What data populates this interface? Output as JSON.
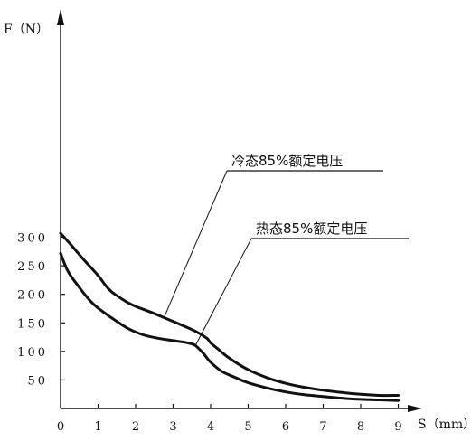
{
  "chart_data": {
    "type": "line",
    "xlabel": "S（mm）",
    "ylabel": "F（N）",
    "xlim": [
      0,
      9
    ],
    "ylim": [
      0,
      300
    ],
    "x_ticks": [
      0,
      1,
      2,
      3,
      4,
      5,
      6,
      7,
      8,
      9
    ],
    "y_ticks": [
      50,
      100,
      150,
      200,
      250,
      300
    ],
    "grid": false,
    "series": [
      {
        "name": "冷态85%额定电压",
        "x": [
          0,
          0.3,
          0.6,
          1.0,
          1.3,
          1.7,
          2.0,
          2.4,
          2.8,
          3.2,
          3.6,
          3.9,
          4.0,
          4.2,
          4.5,
          5.0,
          5.5,
          6.0,
          6.5,
          7.0,
          7.5,
          8.0,
          8.5,
          9.0
        ],
        "y": [
          307,
          285,
          262,
          233,
          208,
          189,
          179,
          169,
          158,
          147,
          135,
          123,
          115,
          104,
          88,
          68,
          54,
          44,
          37,
          32,
          28,
          25,
          23,
          23
        ]
      },
      {
        "name": "热态85%额定电压",
        "x": [
          0,
          0.2,
          0.5,
          0.8,
          1.0,
          1.4,
          1.8,
          2.2,
          2.6,
          3.0,
          3.3,
          3.5,
          3.6,
          3.8,
          4.0,
          4.3,
          4.7,
          5.0,
          5.5,
          6.0,
          6.5,
          7.0,
          7.5,
          8.0,
          8.5,
          9.0
        ],
        "y": [
          272,
          240,
          212,
          188,
          176,
          157,
          140,
          129,
          123,
          119,
          116,
          113,
          110,
          97,
          81,
          65,
          53,
          45,
          36,
          29,
          24,
          21,
          18,
          16,
          15,
          14
        ]
      }
    ],
    "annotations": [
      {
        "text": "冷态85%额定电压",
        "target_series": 0,
        "target_x": 2.75,
        "target_y": 158
      },
      {
        "text": "热态85%额定电压",
        "target_series": 1,
        "target_x": 3.6,
        "target_y": 111
      }
    ]
  }
}
